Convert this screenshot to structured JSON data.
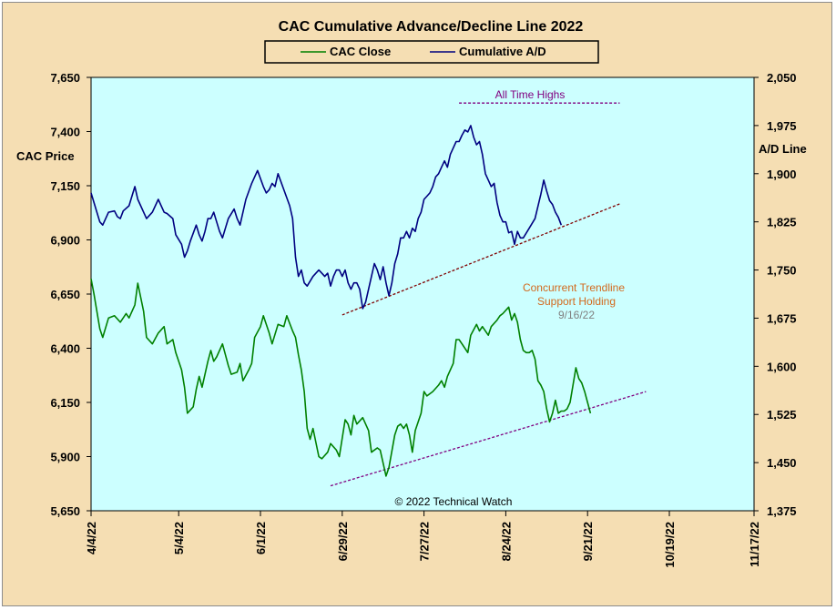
{
  "chart_data": {
    "type": "line",
    "title": "CAC Cumulative  Advance/Decline  Line  2022",
    "ylabel_left": "CAC Price",
    "ylabel_right": "A/D Line",
    "ylim_left": [
      5650,
      7650
    ],
    "ylim_right": [
      1375,
      2050
    ],
    "yticks_left": [
      "5,650",
      "5,900",
      "6,150",
      "6,400",
      "6,650",
      "6,900",
      "7,150",
      "7,400",
      "7,650"
    ],
    "yticks_right": [
      "1,375",
      "1,450",
      "1,525",
      "1,600",
      "1,675",
      "1,750",
      "1,825",
      "1,900",
      "1,975",
      "2,050"
    ],
    "x_tick_labels": [
      "4/4/22",
      "5/4/22",
      "6/1/22",
      "6/29/22",
      "7/27/22",
      "8/24/22",
      "9/21/22",
      "10/19/22",
      "11/17/22"
    ],
    "x_domain_days": [
      0,
      227
    ],
    "x_tick_days": [
      0,
      30,
      58,
      86,
      114,
      142,
      170,
      198,
      227
    ],
    "grid": false,
    "legend_position": "top",
    "copyright": "© 2022 Technical  Watch",
    "series": [
      {
        "name": "CAC Close",
        "axis": "left",
        "color": "#008000",
        "points": [
          [
            0,
            6720
          ],
          [
            1,
            6650
          ],
          [
            3,
            6490
          ],
          [
            4,
            6450
          ],
          [
            6,
            6540
          ],
          [
            8,
            6550
          ],
          [
            10,
            6520
          ],
          [
            12,
            6560
          ],
          [
            13,
            6540
          ],
          [
            15,
            6600
          ],
          [
            16,
            6700
          ],
          [
            18,
            6570
          ],
          [
            19,
            6450
          ],
          [
            21,
            6420
          ],
          [
            23,
            6470
          ],
          [
            25,
            6500
          ],
          [
            26,
            6420
          ],
          [
            28,
            6440
          ],
          [
            29,
            6380
          ],
          [
            31,
            6300
          ],
          [
            32,
            6220
          ],
          [
            33,
            6100
          ],
          [
            35,
            6130
          ],
          [
            36,
            6210
          ],
          [
            37,
            6270
          ],
          [
            38,
            6220
          ],
          [
            40,
            6340
          ],
          [
            41,
            6390
          ],
          [
            42,
            6340
          ],
          [
            43,
            6360
          ],
          [
            45,
            6420
          ],
          [
            46,
            6370
          ],
          [
            47,
            6320
          ],
          [
            48,
            6280
          ],
          [
            50,
            6290
          ],
          [
            51,
            6330
          ],
          [
            52,
            6250
          ],
          [
            54,
            6300
          ],
          [
            55,
            6330
          ],
          [
            56,
            6450
          ],
          [
            58,
            6500
          ],
          [
            59,
            6550
          ],
          [
            61,
            6470
          ],
          [
            62,
            6420
          ],
          [
            64,
            6510
          ],
          [
            66,
            6500
          ],
          [
            67,
            6550
          ],
          [
            69,
            6480
          ],
          [
            70,
            6450
          ],
          [
            71,
            6370
          ],
          [
            72,
            6300
          ],
          [
            73,
            6200
          ],
          [
            74,
            6030
          ],
          [
            75,
            5980
          ],
          [
            76,
            6030
          ],
          [
            78,
            5900
          ],
          [
            79,
            5890
          ],
          [
            81,
            5920
          ],
          [
            82,
            5960
          ],
          [
            84,
            5930
          ],
          [
            85,
            5900
          ],
          [
            87,
            6070
          ],
          [
            88,
            6050
          ],
          [
            89,
            6000
          ],
          [
            90,
            6090
          ],
          [
            91,
            6050
          ],
          [
            93,
            6080
          ],
          [
            95,
            6020
          ],
          [
            96,
            5920
          ],
          [
            98,
            5940
          ],
          [
            99,
            5930
          ],
          [
            101,
            5810
          ],
          [
            102,
            5850
          ],
          [
            104,
            6000
          ],
          [
            105,
            6040
          ],
          [
            106,
            6050
          ],
          [
            107,
            6030
          ],
          [
            108,
            6050
          ],
          [
            109,
            6000
          ],
          [
            110,
            5920
          ],
          [
            111,
            6020
          ],
          [
            112,
            6060
          ],
          [
            113,
            6100
          ],
          [
            114,
            6200
          ],
          [
            115,
            6180
          ],
          [
            117,
            6200
          ],
          [
            119,
            6230
          ],
          [
            120,
            6250
          ],
          [
            121,
            6220
          ],
          [
            122,
            6270
          ],
          [
            124,
            6330
          ],
          [
            125,
            6440
          ],
          [
            126,
            6440
          ],
          [
            127,
            6420
          ],
          [
            129,
            6380
          ],
          [
            130,
            6460
          ],
          [
            132,
            6510
          ],
          [
            133,
            6480
          ],
          [
            134,
            6500
          ],
          [
            136,
            6460
          ],
          [
            137,
            6500
          ],
          [
            139,
            6530
          ],
          [
            140,
            6550
          ],
          [
            141,
            6560
          ],
          [
            143,
            6590
          ],
          [
            144,
            6530
          ],
          [
            145,
            6560
          ],
          [
            146,
            6520
          ],
          [
            147,
            6440
          ],
          [
            148,
            6390
          ],
          [
            149,
            6380
          ],
          [
            150,
            6380
          ],
          [
            151,
            6390
          ],
          [
            152,
            6350
          ],
          [
            153,
            6250
          ],
          [
            154,
            6230
          ],
          [
            155,
            6200
          ],
          [
            156,
            6120
          ],
          [
            157,
            6060
          ],
          [
            158,
            6100
          ],
          [
            159,
            6160
          ],
          [
            160,
            6100
          ],
          [
            161,
            6110
          ],
          [
            162,
            6110
          ],
          [
            163,
            6120
          ],
          [
            164,
            6150
          ],
          [
            165,
            6230
          ],
          [
            166,
            6310
          ],
          [
            167,
            6260
          ],
          [
            168,
            6240
          ],
          [
            169,
            6200
          ],
          [
            170,
            6150
          ],
          [
            171,
            6100
          ]
        ]
      },
      {
        "name": "Cumulative A/D",
        "axis": "right",
        "color": "#000080",
        "points": [
          [
            0,
            1870
          ],
          [
            1,
            1855
          ],
          [
            2,
            1840
          ],
          [
            3,
            1825
          ],
          [
            4,
            1820
          ],
          [
            6,
            1840
          ],
          [
            8,
            1842
          ],
          [
            9,
            1833
          ],
          [
            10,
            1830
          ],
          [
            11,
            1842
          ],
          [
            13,
            1850
          ],
          [
            15,
            1880
          ],
          [
            16,
            1860
          ],
          [
            17,
            1850
          ],
          [
            18,
            1840
          ],
          [
            19,
            1830
          ],
          [
            21,
            1840
          ],
          [
            23,
            1860
          ],
          [
            25,
            1840
          ],
          [
            26,
            1838
          ],
          [
            28,
            1830
          ],
          [
            29,
            1805
          ],
          [
            31,
            1790
          ],
          [
            32,
            1770
          ],
          [
            33,
            1780
          ],
          [
            34,
            1795
          ],
          [
            36,
            1820
          ],
          [
            37,
            1805
          ],
          [
            38,
            1795
          ],
          [
            39,
            1810
          ],
          [
            40,
            1830
          ],
          [
            41,
            1830
          ],
          [
            42,
            1840
          ],
          [
            43,
            1825
          ],
          [
            44,
            1810
          ],
          [
            45,
            1800
          ],
          [
            46,
            1815
          ],
          [
            47,
            1830
          ],
          [
            49,
            1845
          ],
          [
            50,
            1830
          ],
          [
            51,
            1820
          ],
          [
            53,
            1860
          ],
          [
            55,
            1885
          ],
          [
            57,
            1905
          ],
          [
            59,
            1880
          ],
          [
            60,
            1870
          ],
          [
            61,
            1875
          ],
          [
            62,
            1885
          ],
          [
            63,
            1880
          ],
          [
            64,
            1900
          ],
          [
            66,
            1875
          ],
          [
            68,
            1850
          ],
          [
            69,
            1830
          ],
          [
            70,
            1770
          ],
          [
            71,
            1740
          ],
          [
            72,
            1750
          ],
          [
            73,
            1730
          ],
          [
            74,
            1725
          ],
          [
            76,
            1740
          ],
          [
            77,
            1745
          ],
          [
            78,
            1750
          ],
          [
            79,
            1745
          ],
          [
            80,
            1740
          ],
          [
            81,
            1745
          ],
          [
            82,
            1725
          ],
          [
            83,
            1740
          ],
          [
            84,
            1750
          ],
          [
            85,
            1750
          ],
          [
            86,
            1740
          ],
          [
            87,
            1750
          ],
          [
            88,
            1730
          ],
          [
            89,
            1720
          ],
          [
            90,
            1730
          ],
          [
            91,
            1730
          ],
          [
            92,
            1720
          ],
          [
            93,
            1690
          ],
          [
            94,
            1700
          ],
          [
            95,
            1720
          ],
          [
            96,
            1740
          ],
          [
            97,
            1760
          ],
          [
            98,
            1750
          ],
          [
            99,
            1735
          ],
          [
            100,
            1755
          ],
          [
            101,
            1730
          ],
          [
            102,
            1710
          ],
          [
            103,
            1730
          ],
          [
            104,
            1760
          ],
          [
            105,
            1775
          ],
          [
            106,
            1800
          ],
          [
            107,
            1800
          ],
          [
            108,
            1810
          ],
          [
            109,
            1800
          ],
          [
            110,
            1815
          ],
          [
            111,
            1810
          ],
          [
            112,
            1830
          ],
          [
            113,
            1840
          ],
          [
            114,
            1860
          ],
          [
            115,
            1865
          ],
          [
            116,
            1870
          ],
          [
            117,
            1880
          ],
          [
            118,
            1895
          ],
          [
            119,
            1900
          ],
          [
            120,
            1910
          ],
          [
            121,
            1920
          ],
          [
            122,
            1910
          ],
          [
            123,
            1930
          ],
          [
            124,
            1940
          ],
          [
            125,
            1950
          ],
          [
            126,
            1950
          ],
          [
            127,
            1960
          ],
          [
            128,
            1968
          ],
          [
            129,
            1965
          ],
          [
            130,
            1975
          ],
          [
            131,
            1957
          ],
          [
            132,
            1945
          ],
          [
            133,
            1950
          ],
          [
            134,
            1930
          ],
          [
            135,
            1900
          ],
          [
            136,
            1890
          ],
          [
            137,
            1880
          ],
          [
            138,
            1885
          ],
          [
            139,
            1855
          ],
          [
            140,
            1835
          ],
          [
            141,
            1825
          ],
          [
            142,
            1825
          ],
          [
            143,
            1808
          ],
          [
            144,
            1810
          ],
          [
            145,
            1790
          ],
          [
            146,
            1810
          ],
          [
            147,
            1800
          ],
          [
            148,
            1800
          ],
          [
            150,
            1815
          ],
          [
            152,
            1830
          ],
          [
            154,
            1868
          ],
          [
            155,
            1890
          ],
          [
            156,
            1873
          ],
          [
            157,
            1858
          ],
          [
            158,
            1852
          ],
          [
            159,
            1840
          ],
          [
            160,
            1832
          ],
          [
            161,
            1820
          ]
        ]
      }
    ],
    "trendlines": [
      {
        "axis": "right",
        "color": "#800000",
        "style": "dashed",
        "from": [
          86,
          1680
        ],
        "to": [
          181,
          1853
        ]
      },
      {
        "axis": "left",
        "color": "#800080",
        "style": "dashed",
        "from": [
          82,
          5765
        ],
        "to": [
          190,
          6200
        ]
      },
      {
        "axis": "right",
        "color": "#800080",
        "style": "dashed",
        "from": [
          126,
          2010
        ],
        "to": [
          181,
          2010
        ]
      }
    ],
    "annotations": {
      "all_time_highs": "All Time Highs",
      "concurrent_line1": "Concurrent  Trendline",
      "concurrent_line2": "Support  Holding",
      "concurrent_date": "9/16/22"
    },
    "colors": {
      "frame_bg": "#f5deb3",
      "plot_bg": "#ccffff",
      "annotation_purple": "#800080",
      "annotation_orange": "#d2691e",
      "date_gray": "#808080"
    }
  }
}
